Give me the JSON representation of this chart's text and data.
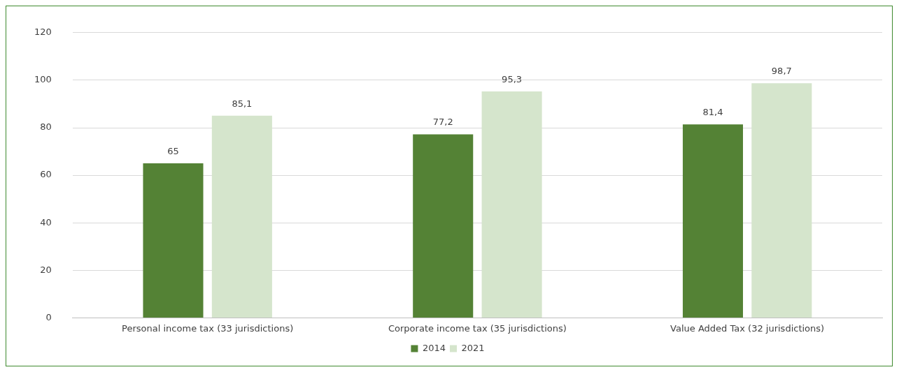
{
  "chart_data": {
    "type": "bar",
    "categories": [
      "Personal income tax (33 jurisdictions)",
      "Corporate income tax (35 jurisdictions)",
      "Value Added Tax (32 jurisdictions)"
    ],
    "series": [
      {
        "name": "2014",
        "color": "#548235",
        "values": [
          65,
          77.2,
          81.4
        ],
        "value_labels": [
          "65",
          "77,2",
          "81,4"
        ]
      },
      {
        "name": "2021",
        "color": "#d5e5cc",
        "values": [
          85.1,
          95.3,
          98.7
        ],
        "value_labels": [
          "85,1",
          "95,3",
          "98,7"
        ]
      }
    ],
    "ylim": [
      0,
      120
    ],
    "yticks": [
      0,
      20,
      40,
      60,
      80,
      100,
      120
    ],
    "grid": "y",
    "legend": "bottom"
  }
}
